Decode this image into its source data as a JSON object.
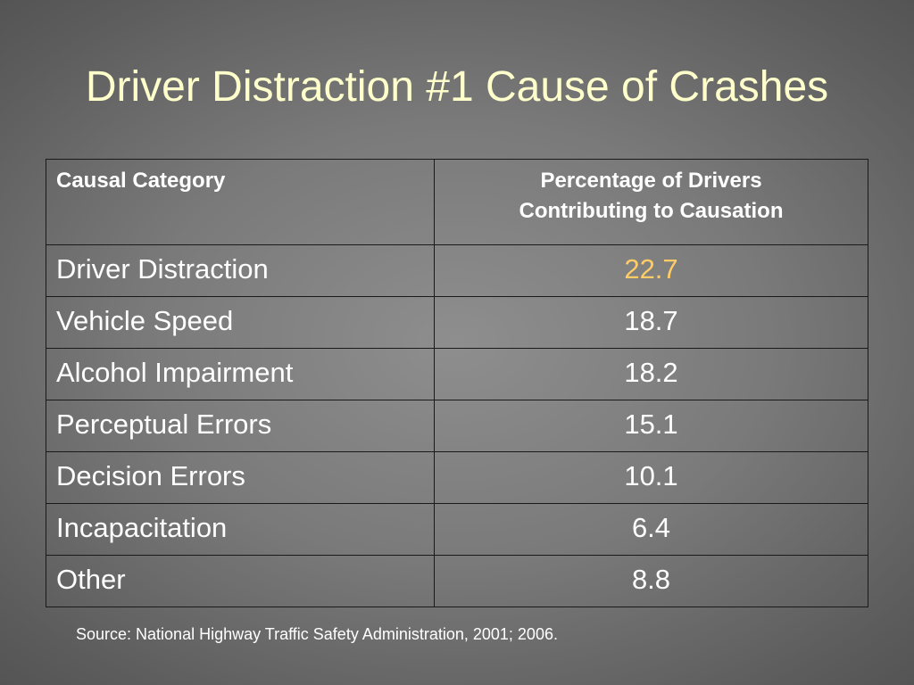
{
  "slide": {
    "title": "Driver Distraction #1 Cause of Crashes",
    "table": {
      "headers": {
        "category": "Causal Category",
        "percentage_line1": "Percentage of Drivers",
        "percentage_line2": "Contributing to Causation"
      },
      "rows": [
        {
          "category": "Driver Distraction",
          "value": "22.7"
        },
        {
          "category": "Vehicle Speed",
          "value": "18.7"
        },
        {
          "category": "Alcohol Impairment",
          "value": "18.2"
        },
        {
          "category": "Perceptual Errors",
          "value": "15.1"
        },
        {
          "category": "Decision Errors",
          "value": "10.1"
        },
        {
          "category": "Incapacitation",
          "value": "6.4"
        },
        {
          "category": "Other",
          "value": "8.8"
        }
      ]
    },
    "source": "Source: National Highway Traffic Safety Administration, 2001; 2006."
  },
  "colors": {
    "title": "#ffffcc",
    "highlight_value": "#ffcc66",
    "text": "#ffffff",
    "border": "#1a1a1a"
  }
}
